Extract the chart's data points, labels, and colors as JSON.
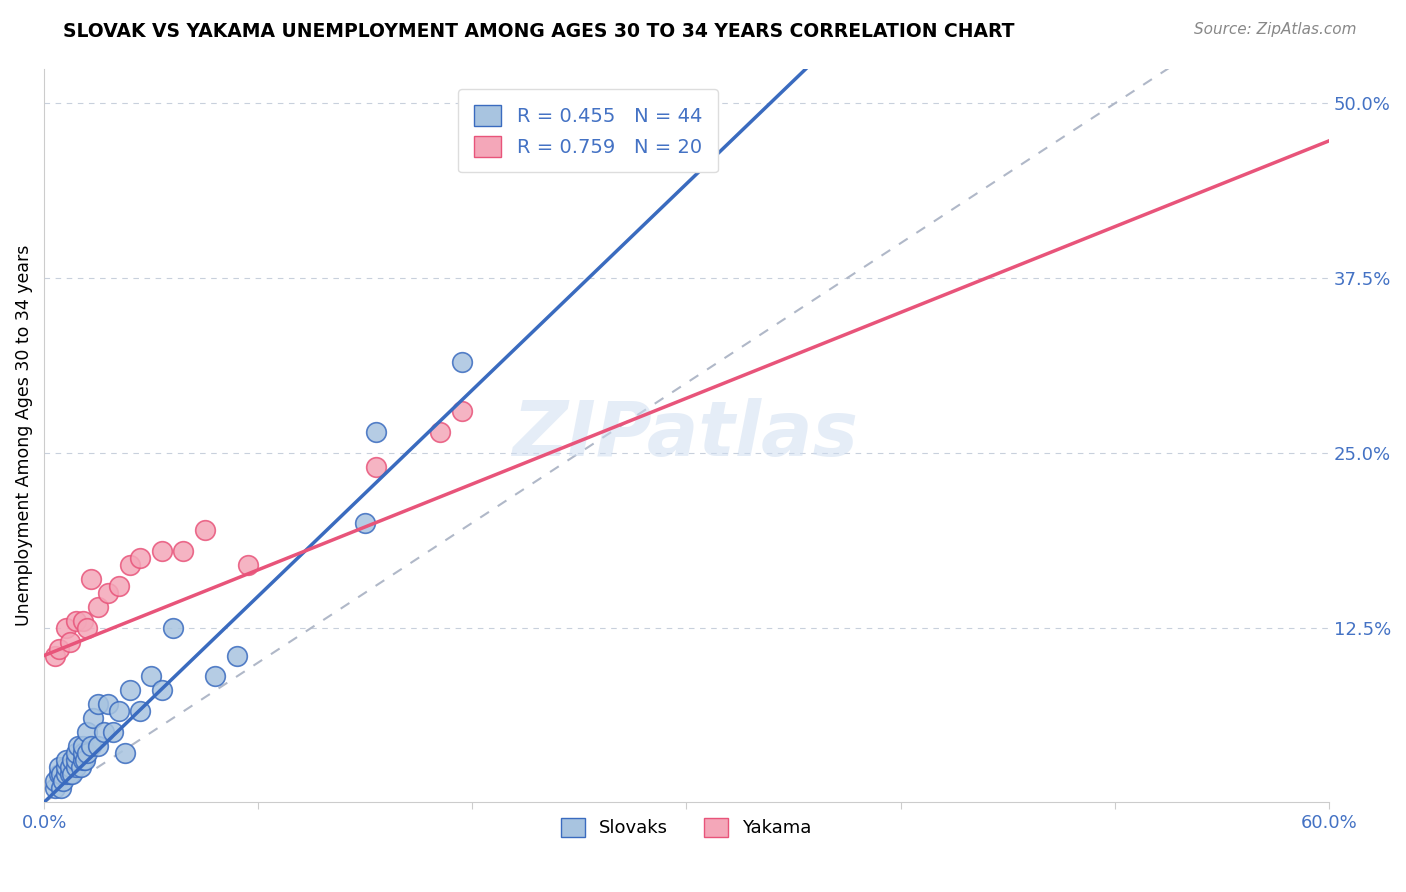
{
  "title": "SLOVAK VS YAKAMA UNEMPLOYMENT AMONG AGES 30 TO 34 YEARS CORRELATION CHART",
  "source": "Source: ZipAtlas.com",
  "ylabel": "Unemployment Among Ages 30 to 34 years",
  "xlim": [
    0,
    0.6
  ],
  "ylim": [
    0,
    0.525
  ],
  "xticks": [
    0.0,
    0.1,
    0.2,
    0.3,
    0.4,
    0.5,
    0.6
  ],
  "xtick_labels": [
    "0.0%",
    "",
    "",
    "",
    "",
    "",
    "60.0%"
  ],
  "ytick_right": [
    0.0,
    0.125,
    0.25,
    0.375,
    0.5
  ],
  "ytick_right_labels": [
    "",
    "12.5%",
    "25.0%",
    "37.5%",
    "50.0%"
  ],
  "watermark": "ZIPatlas",
  "legend_r1": "R = 0.455",
  "legend_n1": "N = 44",
  "legend_r2": "R = 0.759",
  "legend_n2": "N = 20",
  "color_slovak": "#a8c4e0",
  "color_yakama": "#f4a7b9",
  "color_line_slovak": "#3a6bbf",
  "color_line_yakama": "#e8547a",
  "color_diagonal": "#b0b8c8",
  "color_axis_text": "#4472c4",
  "slovak_line_x0": 0.0,
  "slovak_line_y0": 0.0,
  "slovak_line_x1": 0.2,
  "slovak_line_y1": 0.295,
  "yakama_line_x0": 0.0,
  "yakama_line_y0": 0.105,
  "yakama_line_x1": 0.44,
  "yakama_line_y1": 0.375,
  "slovak_x": [
    0.005,
    0.005,
    0.007,
    0.007,
    0.008,
    0.008,
    0.009,
    0.01,
    0.01,
    0.01,
    0.012,
    0.012,
    0.013,
    0.013,
    0.015,
    0.015,
    0.015,
    0.016,
    0.017,
    0.018,
    0.018,
    0.018,
    0.019,
    0.02,
    0.02,
    0.022,
    0.023,
    0.025,
    0.025,
    0.028,
    0.03,
    0.032,
    0.035,
    0.038,
    0.04,
    0.045,
    0.05,
    0.055,
    0.06,
    0.08,
    0.09,
    0.15,
    0.155,
    0.195
  ],
  "slovak_y": [
    0.01,
    0.015,
    0.02,
    0.025,
    0.01,
    0.02,
    0.015,
    0.02,
    0.025,
    0.03,
    0.02,
    0.025,
    0.02,
    0.03,
    0.025,
    0.03,
    0.035,
    0.04,
    0.025,
    0.03,
    0.035,
    0.04,
    0.03,
    0.035,
    0.05,
    0.04,
    0.06,
    0.04,
    0.07,
    0.05,
    0.07,
    0.05,
    0.065,
    0.035,
    0.08,
    0.065,
    0.09,
    0.08,
    0.125,
    0.09,
    0.105,
    0.2,
    0.265,
    0.315
  ],
  "yakama_x": [
    0.005,
    0.007,
    0.01,
    0.012,
    0.015,
    0.018,
    0.02,
    0.022,
    0.025,
    0.03,
    0.035,
    0.04,
    0.045,
    0.055,
    0.065,
    0.075,
    0.095,
    0.155,
    0.185,
    0.195
  ],
  "yakama_y": [
    0.105,
    0.11,
    0.125,
    0.115,
    0.13,
    0.13,
    0.125,
    0.16,
    0.14,
    0.15,
    0.155,
    0.17,
    0.175,
    0.18,
    0.18,
    0.195,
    0.17,
    0.24,
    0.265,
    0.28
  ]
}
